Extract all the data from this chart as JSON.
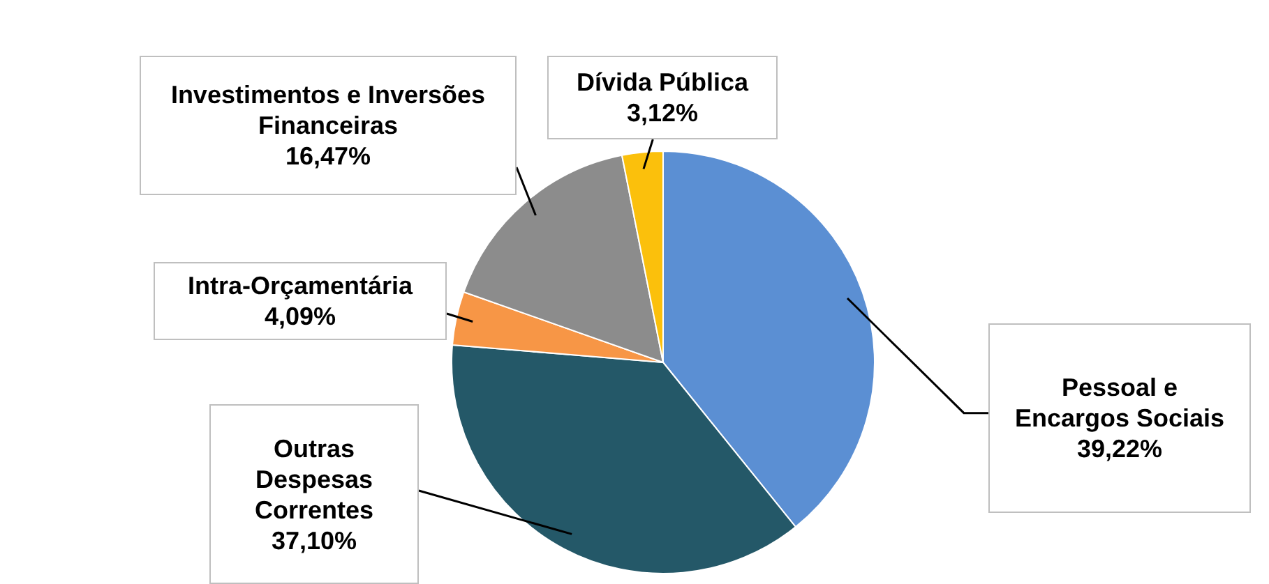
{
  "chart_data": {
    "type": "pie",
    "categories": [
      "Pessoal e Encargos Sociais",
      "Outras Despesas Correntes",
      "Intra-Orçamentária",
      "Investimentos e Inversões Financeiras",
      "Dívida Pública"
    ],
    "values": [
      39.22,
      37.1,
      4.09,
      16.47,
      3.12
    ],
    "value_labels": [
      "39,22%",
      "37,10%",
      "4,09%",
      "16,47%",
      "3,12%"
    ],
    "colors": [
      "#5b8fd3",
      "#245868",
      "#f79646",
      "#8c8c8c",
      "#fbc00c"
    ],
    "legend": false
  }
}
